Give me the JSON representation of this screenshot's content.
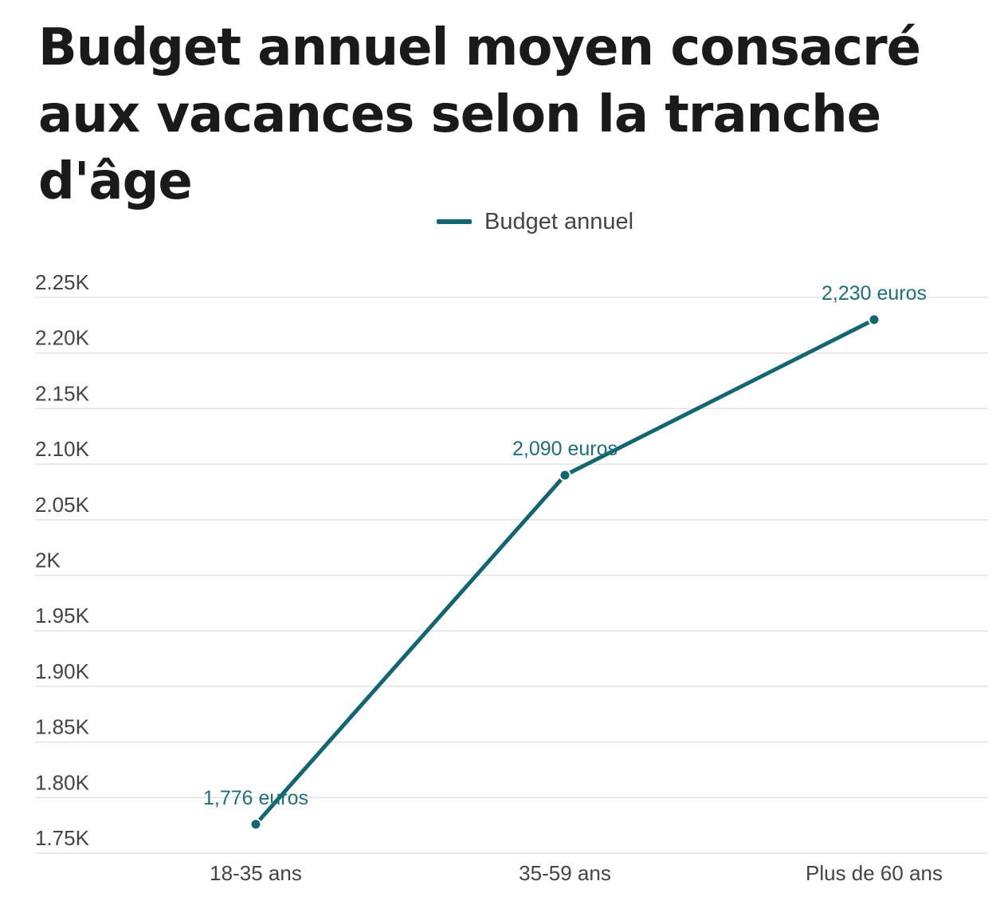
{
  "chart_data": {
    "type": "line",
    "title": "Budget annuel moyen consacré aux vacances selon la tranche d'âge",
    "categories": [
      "18-35 ans",
      "35-59 ans",
      "Plus de 60 ans"
    ],
    "series": [
      {
        "name": "Budget annuel",
        "values": [
          1776,
          2090,
          2230
        ],
        "data_labels": [
          "1,776 euros",
          "2,090 euros",
          "2,230 euros"
        ]
      }
    ],
    "ylim": [
      1750,
      2250
    ],
    "yticks": [
      1750,
      1800,
      1850,
      1900,
      1950,
      2000,
      2050,
      2100,
      2150,
      2200,
      2250
    ],
    "ytick_labels": [
      "1.75K",
      "1.80K",
      "1.85K",
      "1.90K",
      "1.95K",
      "2K",
      "2.05K",
      "2.10K",
      "2.15K",
      "2.20K",
      "2.25K"
    ],
    "xlabel": "",
    "ylabel": "",
    "grid": true,
    "legend_position": "top-center",
    "colors": {
      "series": "#126671",
      "label": "#1f6f7a",
      "grid": "#e3e3e3",
      "tick": "#444444",
      "title": "#1a1a1a"
    }
  }
}
